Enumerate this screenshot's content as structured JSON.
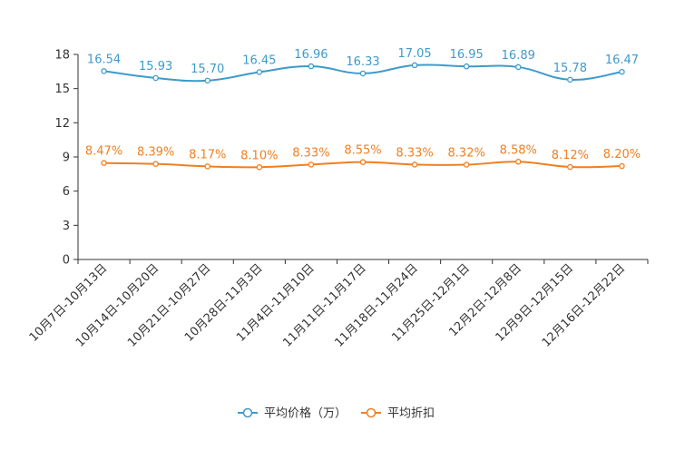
{
  "chart_data": {
    "type": "line",
    "categories": [
      "10月7日-10月13日",
      "10月14日-10月20日",
      "10月21日-10月27日",
      "10月28日-11月3日",
      "11月4日-11月10日",
      "11月11日-11月17日",
      "11月18日-11月24日",
      "11月25日-12月1日",
      "12月2日-12月8日",
      "12月9日-12月15日",
      "12月16日-12月22日"
    ],
    "series": [
      {
        "name": "平均价格（万）",
        "color": "#3d9acc",
        "values": [
          16.54,
          15.93,
          15.7,
          16.45,
          16.96,
          16.33,
          17.05,
          16.95,
          16.89,
          15.78,
          16.47
        ],
        "labels": [
          "16.54",
          "15.93",
          "15.70",
          "16.45",
          "16.96",
          "16.33",
          "17.05",
          "16.95",
          "16.89",
          "15.78",
          "16.47"
        ]
      },
      {
        "name": "平均折扣",
        "color": "#f07f22",
        "values": [
          8.47,
          8.39,
          8.17,
          8.1,
          8.33,
          8.55,
          8.33,
          8.32,
          8.58,
          8.12,
          8.2
        ],
        "labels": [
          "8.47%",
          "8.39%",
          "8.17%",
          "8.10%",
          "8.33%",
          "8.55%",
          "8.33%",
          "8.32%",
          "8.58%",
          "8.12%",
          "8.20%"
        ]
      }
    ],
    "y_ticks": [
      "0",
      "3",
      "6",
      "9",
      "12",
      "15",
      "18"
    ],
    "ylim": [
      0,
      18
    ],
    "legend_position": "bottom-center"
  }
}
